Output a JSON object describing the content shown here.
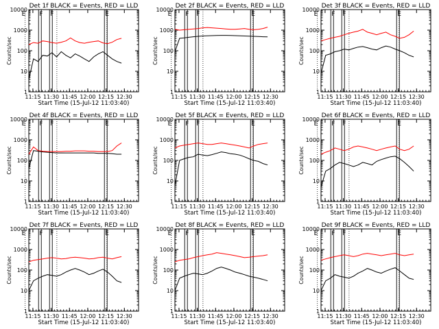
{
  "page_title": "",
  "colors": {
    "events": "#000000",
    "lld": "#ff0000",
    "axes": "#000000",
    "background": "#ffffff"
  },
  "chart_data": [
    {
      "type": "line",
      "title": "Det 1f BLACK = Events, RED = LLD",
      "xlabel": "Start Time (15-Jul-12 11:03:40)",
      "ylabel": "Counts/sec",
      "yscale": "log",
      "ylim": [
        1,
        10000
      ],
      "xticks": [
        "11:15",
        "11:30",
        "11:45",
        "12:00",
        "12:15",
        "12:30"
      ],
      "yticks": [
        "1",
        "10",
        "100",
        "1000",
        "10000"
      ],
      "vlines_dotted": [
        5,
        31,
        72
      ],
      "vlines_solid": [
        16,
        25,
        70
      ],
      "flags": [
        "E",
        "F",
        "F",
        "E"
      ],
      "series": [
        {
          "name": "Events",
          "color": "#000000",
          "values": [
            4,
            40,
            30,
            60,
            55,
            80,
            50,
            90,
            60,
            45,
            70,
            55,
            40,
            30,
            50,
            70,
            90,
            60,
            40,
            30,
            25
          ]
        },
        {
          "name": "LLD",
          "color": "#ff0000",
          "values": [
            200,
            250,
            230,
            300,
            280,
            250,
            230,
            260,
            300,
            420,
            300,
            250,
            230,
            260,
            280,
            300,
            240,
            220,
            260,
            350,
            400
          ]
        }
      ]
    },
    {
      "type": "line",
      "title": "Det 2f BLACK = Events, RED = LLD",
      "xlabel": "Start Time (15-Jul-12 11:03:40)",
      "ylabel": "Counts/sec",
      "yscale": "log",
      "ylim": [
        1,
        10000
      ],
      "xticks": [
        "11:15",
        "11:30",
        "11:45",
        "12:00",
        "12:15",
        "12:30"
      ],
      "yticks": [
        "1",
        "10",
        "100",
        "1000",
        "10000"
      ],
      "vlines_dotted": [
        5,
        31,
        72
      ],
      "vlines_solid": [
        16,
        25,
        70
      ],
      "flags": [
        "E",
        "F",
        "F",
        "E"
      ],
      "series": [
        {
          "name": "Events",
          "color": "#000000",
          "values": [
            90,
            400,
            420,
            450,
            480,
            500,
            520,
            530,
            540,
            550,
            560,
            560,
            550,
            540,
            530,
            520,
            510,
            500,
            490,
            480,
            470
          ]
        },
        {
          "name": "LLD",
          "color": "#ff0000",
          "values": [
            1100,
            1000,
            1050,
            1100,
            1150,
            1200,
            1300,
            1350,
            1300,
            1250,
            1200,
            1150,
            1100,
            1100,
            1150,
            1200,
            1100,
            1050,
            1100,
            1200,
            1400
          ]
        }
      ]
    },
    {
      "type": "line",
      "title": "Det 3f BLACK = Events, RED = LLD",
      "xlabel": "Start Time (15-Jul-12 11:03:40)",
      "ylabel": "Counts/sec",
      "yscale": "log",
      "ylim": [
        1,
        10000
      ],
      "xticks": [
        "11:15",
        "11:30",
        "11:45",
        "12:00",
        "12:15",
        "12:30"
      ],
      "yticks": [
        "1",
        "10",
        "100",
        "1000",
        "10000"
      ],
      "vlines_dotted": [
        5,
        31,
        72
      ],
      "vlines_solid": [
        16,
        25,
        70
      ],
      "flags": [
        "E",
        "F",
        "F",
        "E"
      ],
      "series": [
        {
          "name": "Events",
          "color": "#000000",
          "values": [
            8,
            60,
            70,
            90,
            100,
            120,
            110,
            130,
            150,
            160,
            140,
            120,
            110,
            140,
            170,
            150,
            120,
            100,
            80,
            60,
            50
          ]
        },
        {
          "name": "LLD",
          "color": "#ff0000",
          "values": [
            300,
            350,
            400,
            450,
            500,
            600,
            700,
            800,
            900,
            1100,
            800,
            700,
            600,
            700,
            800,
            600,
            500,
            400,
            450,
            600,
            900
          ]
        }
      ]
    },
    {
      "type": "line",
      "title": "Det 4f BLACK = Events, RED = LLD",
      "xlabel": "Start Time (15-Jul-12 11:03:40)",
      "ylabel": "Counts/sec",
      "yscale": "log",
      "ylim": [
        1,
        10000
      ],
      "xticks": [
        "11:15",
        "11:30",
        "11:45",
        "12:00",
        "12:15",
        "12:30"
      ],
      "yticks": [
        "1",
        "10",
        "100",
        "1000",
        "10000"
      ],
      "vlines_dotted": [
        5,
        31,
        72
      ],
      "vlines_solid": [
        16,
        25,
        70
      ],
      "flags": [
        "E",
        "F",
        "F",
        "E"
      ],
      "series": [
        {
          "name": "Events",
          "color": "#000000",
          "values": [
            40,
            300,
            280,
            260,
            250,
            240,
            230,
            230,
            230,
            230,
            230,
            230,
            230,
            230,
            230,
            220,
            220,
            220,
            210,
            200,
            200
          ]
        },
        {
          "name": "LLD",
          "color": "#ff0000",
          "values": [
            200,
            450,
            300,
            280,
            270,
            270,
            270,
            270,
            280,
            280,
            290,
            290,
            290,
            280,
            280,
            270,
            270,
            270,
            300,
            500,
            700
          ]
        }
      ]
    },
    {
      "type": "line",
      "title": "Det 5f BLACK = Events, RED = LLD",
      "xlabel": "Start Time (15-Jul-12 11:03:40)",
      "ylabel": "Counts/sec",
      "yscale": "log",
      "ylim": [
        1,
        10000
      ],
      "xticks": [
        "11:15",
        "11:30",
        "11:45",
        "12:00",
        "12:15",
        "12:30"
      ],
      "yticks": [
        "1",
        "10",
        "100",
        "1000",
        "10000"
      ],
      "vlines_dotted": [
        5,
        31,
        72
      ],
      "vlines_solid": [
        16,
        25,
        70
      ],
      "flags": [
        "E",
        "F",
        "F",
        "E"
      ],
      "series": [
        {
          "name": "Events",
          "color": "#000000",
          "values": [
            6,
            100,
            120,
            140,
            150,
            200,
            180,
            170,
            190,
            220,
            260,
            240,
            210,
            200,
            180,
            150,
            120,
            100,
            90,
            70,
            60
          ]
        },
        {
          "name": "LLD",
          "color": "#ff0000",
          "values": [
            400,
            500,
            550,
            600,
            650,
            700,
            650,
            600,
            600,
            650,
            700,
            650,
            600,
            550,
            500,
            450,
            400,
            500,
            600,
            650,
            700
          ]
        }
      ]
    },
    {
      "type": "line",
      "title": "Det 6f BLACK = Events, RED = LLD",
      "xlabel": "Start Time (15-Jul-12 11:03:40)",
      "ylabel": "Counts/sec",
      "yscale": "log",
      "ylim": [
        1,
        10000
      ],
      "xticks": [
        "11:15",
        "11:30",
        "11:45",
        "12:00",
        "12:15",
        "12:30"
      ],
      "yticks": [
        "1",
        "10",
        "100",
        "1000",
        "10000"
      ],
      "vlines_dotted": [
        5,
        31,
        72
      ],
      "vlines_solid": [
        16,
        25,
        70
      ],
      "flags": [
        "E",
        "F",
        "F",
        "E"
      ],
      "series": [
        {
          "name": "Events",
          "color": "#000000",
          "values": [
            5,
            30,
            40,
            60,
            80,
            70,
            60,
            50,
            60,
            80,
            70,
            60,
            90,
            110,
            130,
            150,
            160,
            120,
            80,
            50,
            30
          ]
        },
        {
          "name": "LLD",
          "color": "#ff0000",
          "values": [
            200,
            250,
            300,
            400,
            350,
            300,
            350,
            450,
            500,
            450,
            400,
            350,
            300,
            350,
            400,
            450,
            500,
            350,
            300,
            350,
            500
          ]
        }
      ]
    },
    {
      "type": "line",
      "title": "Det 7f BLACK = Events, RED = LLD",
      "xlabel": "Start Time (15-Jul-12 11:03:40)",
      "ylabel": "Counts/sec",
      "yscale": "log",
      "ylim": [
        1,
        10000
      ],
      "xticks": [
        "11:15",
        "11:30",
        "11:45",
        "12:00",
        "12:15",
        "12:30"
      ],
      "yticks": [
        "1",
        "10",
        "100",
        "1000",
        "10000"
      ],
      "vlines_dotted": [
        5,
        31,
        72
      ],
      "vlines_solid": [
        16,
        25,
        70
      ],
      "flags": [
        "E",
        "F",
        "F",
        "E"
      ],
      "series": [
        {
          "name": "Events",
          "color": "#000000",
          "values": [
            10,
            30,
            40,
            50,
            60,
            55,
            50,
            60,
            80,
            100,
            120,
            100,
            80,
            60,
            70,
            90,
            110,
            80,
            50,
            30,
            25
          ]
        },
        {
          "name": "LLD",
          "color": "#ff0000",
          "values": [
            250,
            300,
            320,
            350,
            380,
            400,
            380,
            350,
            360,
            400,
            420,
            400,
            380,
            350,
            360,
            400,
            420,
            380,
            350,
            400,
            450
          ]
        }
      ]
    },
    {
      "type": "line",
      "title": "Det 8f BLACK = Events, RED = LLD",
      "xlabel": "Start Time (15-Jul-12 11:03:40)",
      "ylabel": "Counts/sec",
      "yscale": "log",
      "ylim": [
        1,
        10000
      ],
      "xticks": [
        "11:15",
        "11:30",
        "11:45",
        "12:00",
        "12:15",
        "12:30"
      ],
      "yticks": [
        "1",
        "10",
        "100",
        "1000",
        "10000"
      ],
      "vlines_dotted": [
        5,
        31,
        72
      ],
      "vlines_solid": [
        16,
        25,
        70
      ],
      "flags": [
        "E",
        "F",
        "F",
        "E"
      ],
      "series": [
        {
          "name": "Events",
          "color": "#000000",
          "values": [
            10,
            40,
            50,
            60,
            70,
            65,
            60,
            70,
            90,
            120,
            140,
            120,
            100,
            80,
            70,
            60,
            50,
            45,
            40,
            35,
            30
          ]
        },
        {
          "name": "LLD",
          "color": "#ff0000",
          "values": [
            250,
            300,
            320,
            350,
            400,
            450,
            500,
            550,
            600,
            700,
            650,
            600,
            550,
            500,
            450,
            400,
            420,
            450,
            480,
            500,
            550
          ]
        }
      ]
    },
    {
      "type": "line",
      "title": "Det 9f BLACK = Events, RED = LLD",
      "xlabel": "Start Time (15-Jul-12 11:03:40)",
      "ylabel": "Counts/sec",
      "yscale": "log",
      "ylim": [
        1,
        10000
      ],
      "xticks": [
        "11:15",
        "11:30",
        "11:45",
        "12:00",
        "12:15",
        "12:30"
      ],
      "yticks": [
        "1",
        "10",
        "100",
        "1000",
        "10000"
      ],
      "vlines_dotted": [
        5,
        31,
        72
      ],
      "vlines_solid": [
        16,
        25,
        70
      ],
      "flags": [
        "E",
        "F",
        "F",
        "E"
      ],
      "series": [
        {
          "name": "Events",
          "color": "#000000",
          "values": [
            10,
            30,
            40,
            60,
            50,
            45,
            40,
            50,
            70,
            90,
            120,
            100,
            80,
            70,
            90,
            110,
            130,
            90,
            60,
            40,
            35
          ]
        },
        {
          "name": "LLD",
          "color": "#ff0000",
          "values": [
            300,
            350,
            400,
            450,
            500,
            550,
            500,
            450,
            500,
            600,
            650,
            600,
            550,
            500,
            550,
            600,
            650,
            550,
            500,
            550,
            600
          ]
        }
      ]
    }
  ]
}
